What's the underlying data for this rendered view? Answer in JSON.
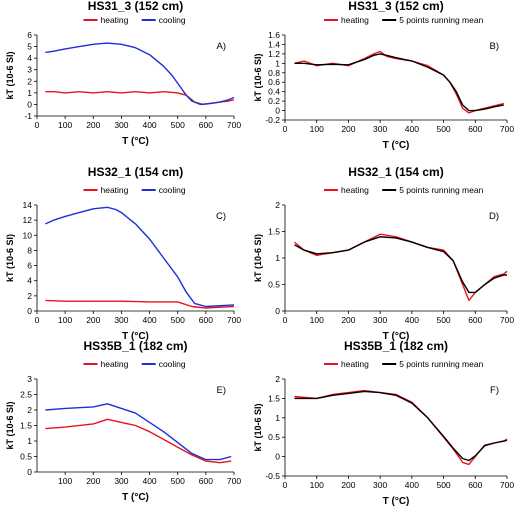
{
  "colors": {
    "heating": "#e8141b",
    "cooling": "#1f2fd6",
    "mean": "#000000"
  },
  "chart_data": [
    {
      "type": "line",
      "title": "HS31_3 (152 cm)",
      "panel_label": "A)",
      "xlabel": "T (°C)",
      "ylabel": "kT (10-6 SI)",
      "xlim": [
        0,
        700
      ],
      "ylim": [
        -1,
        6
      ],
      "xticks": [
        0,
        100,
        200,
        300,
        400,
        500,
        600,
        700
      ],
      "yticks": [
        -1,
        0,
        1,
        2,
        3,
        4,
        5,
        6
      ],
      "legend": {
        "placement": "top",
        "entries": [
          "heating",
          "cooling"
        ]
      },
      "series": [
        {
          "name": "heating",
          "color": "#e8141b",
          "x": [
            30,
            60,
            100,
            150,
            200,
            250,
            300,
            350,
            400,
            450,
            500,
            530,
            560,
            590,
            620,
            650,
            680,
            700
          ],
          "y": [
            1.1,
            1.1,
            1.0,
            1.1,
            1.0,
            1.1,
            1.0,
            1.1,
            1.0,
            1.1,
            1.0,
            0.8,
            0.2,
            0.0,
            0.1,
            0.2,
            0.3,
            0.4
          ]
        },
        {
          "name": "cooling",
          "color": "#1f2fd6",
          "x": [
            30,
            60,
            100,
            150,
            200,
            250,
            300,
            350,
            400,
            450,
            480,
            510,
            530,
            550,
            580,
            620,
            650,
            680,
            700
          ],
          "y": [
            4.5,
            4.6,
            4.8,
            5.0,
            5.2,
            5.3,
            5.2,
            4.9,
            4.3,
            3.3,
            2.5,
            1.5,
            0.8,
            0.3,
            0.0,
            0.1,
            0.2,
            0.4,
            0.6
          ]
        }
      ]
    },
    {
      "type": "line",
      "title": "HS31_3 (152 cm)",
      "panel_label": "B)",
      "xlabel": "T (°C)",
      "ylabel": "kT (10-6 SI)",
      "xlim": [
        0,
        700
      ],
      "ylim": [
        -0.2,
        1.6
      ],
      "xticks": [
        0,
        100,
        200,
        300,
        400,
        500,
        600,
        700
      ],
      "yticks": [
        -0.2,
        0,
        0.2,
        0.4,
        0.6,
        0.8,
        1,
        1.2,
        1.4,
        1.6
      ],
      "legend": {
        "placement": "top",
        "entries": [
          "heating",
          "5 points running mean"
        ]
      },
      "series": [
        {
          "name": "heating",
          "color": "#e8141b",
          "x": [
            30,
            60,
            100,
            150,
            200,
            250,
            280,
            300,
            320,
            350,
            400,
            450,
            500,
            520,
            540,
            560,
            580,
            600,
            630,
            660,
            690
          ],
          "y": [
            1.0,
            1.05,
            0.95,
            1.0,
            0.95,
            1.1,
            1.2,
            1.25,
            1.15,
            1.1,
            1.05,
            0.95,
            0.75,
            0.6,
            0.35,
            0.05,
            -0.05,
            0.0,
            0.05,
            0.1,
            0.15
          ]
        },
        {
          "name": "5 points running mean",
          "color": "#000000",
          "x": [
            30,
            60,
            100,
            150,
            200,
            250,
            280,
            300,
            320,
            350,
            400,
            450,
            500,
            520,
            540,
            560,
            580,
            600,
            630,
            660,
            690
          ],
          "y": [
            1.0,
            1.0,
            0.97,
            0.98,
            0.97,
            1.08,
            1.17,
            1.2,
            1.17,
            1.12,
            1.05,
            0.92,
            0.75,
            0.6,
            0.4,
            0.12,
            0.0,
            0.0,
            0.03,
            0.08,
            0.12
          ]
        }
      ]
    },
    {
      "type": "line",
      "title": "HS32_1 (154 cm)",
      "panel_label": "C)",
      "xlabel": "T (°C)",
      "ylabel": "kT (10-6 SI)",
      "xlim": [
        0,
        700
      ],
      "ylim": [
        0,
        14
      ],
      "xticks": [
        0,
        100,
        200,
        300,
        400,
        500,
        600,
        700
      ],
      "yticks": [
        0,
        2,
        4,
        6,
        8,
        10,
        12,
        14
      ],
      "legend": {
        "placement": "top",
        "entries": [
          "heating",
          "cooling"
        ]
      },
      "series": [
        {
          "name": "heating",
          "color": "#e8141b",
          "x": [
            30,
            100,
            200,
            300,
            400,
            500,
            550,
            600,
            650,
            700
          ],
          "y": [
            1.4,
            1.3,
            1.3,
            1.3,
            1.2,
            1.2,
            0.6,
            0.4,
            0.5,
            0.6
          ]
        },
        {
          "name": "cooling",
          "color": "#1f2fd6",
          "x": [
            30,
            60,
            100,
            150,
            200,
            250,
            280,
            300,
            350,
            400,
            450,
            500,
            530,
            560,
            600,
            650,
            700
          ],
          "y": [
            11.5,
            12.0,
            12.5,
            13.0,
            13.5,
            13.7,
            13.4,
            13.0,
            11.5,
            9.5,
            7.0,
            4.5,
            2.5,
            1.0,
            0.6,
            0.7,
            0.8
          ]
        }
      ]
    },
    {
      "type": "line",
      "title": "HS32_1 (154 cm)",
      "panel_label": "D)",
      "xlabel": "T (°C)",
      "ylabel": "kT (10-6 SI)",
      "xlim": [
        0,
        700
      ],
      "ylim": [
        0,
        2
      ],
      "xticks": [
        0,
        100,
        200,
        300,
        400,
        500,
        600,
        700
      ],
      "yticks": [
        0,
        0.5,
        1,
        1.5,
        2
      ],
      "legend": {
        "placement": "top",
        "entries": [
          "heating",
          "5 points running mean"
        ]
      },
      "series": [
        {
          "name": "heating",
          "color": "#e8141b",
          "x": [
            30,
            60,
            100,
            150,
            200,
            250,
            300,
            350,
            400,
            450,
            500,
            530,
            560,
            580,
            600,
            630,
            660,
            690,
            700
          ],
          "y": [
            1.3,
            1.15,
            1.05,
            1.1,
            1.15,
            1.3,
            1.45,
            1.4,
            1.3,
            1.2,
            1.15,
            0.95,
            0.5,
            0.2,
            0.35,
            0.5,
            0.65,
            0.7,
            0.75
          ]
        },
        {
          "name": "5 points running mean",
          "color": "#000000",
          "x": [
            30,
            60,
            100,
            150,
            200,
            250,
            300,
            350,
            400,
            450,
            500,
            530,
            560,
            580,
            600,
            630,
            660,
            690,
            700
          ],
          "y": [
            1.25,
            1.15,
            1.08,
            1.1,
            1.15,
            1.3,
            1.4,
            1.38,
            1.3,
            1.2,
            1.12,
            0.95,
            0.55,
            0.35,
            0.35,
            0.5,
            0.62,
            0.68,
            0.68
          ]
        }
      ]
    },
    {
      "type": "line",
      "title": "HS35B_1 (182 cm)",
      "panel_label": "E)",
      "xlabel": "T (°C)",
      "ylabel": "kT (10-6 SI)",
      "xlim": [
        0,
        700
      ],
      "ylim": [
        0,
        3
      ],
      "xticks": [
        100,
        200,
        300,
        400,
        500,
        600,
        700
      ],
      "yticks": [
        0,
        0.5,
        1,
        1.5,
        2,
        2.5,
        3
      ],
      "legend": {
        "placement": "top",
        "entries": [
          "heating",
          "cooling"
        ]
      },
      "series": [
        {
          "name": "heating",
          "color": "#e8141b",
          "x": [
            30,
            100,
            200,
            250,
            300,
            350,
            400,
            450,
            500,
            550,
            600,
            650,
            690
          ],
          "y": [
            1.4,
            1.45,
            1.55,
            1.7,
            1.6,
            1.5,
            1.3,
            1.05,
            0.8,
            0.55,
            0.35,
            0.3,
            0.35
          ]
        },
        {
          "name": "cooling",
          "color": "#1f2fd6",
          "x": [
            30,
            100,
            200,
            250,
            300,
            350,
            400,
            450,
            500,
            550,
            600,
            650,
            690
          ],
          "y": [
            2.0,
            2.05,
            2.1,
            2.2,
            2.05,
            1.9,
            1.6,
            1.3,
            0.95,
            0.6,
            0.4,
            0.4,
            0.5
          ]
        }
      ]
    },
    {
      "type": "line",
      "title": "HS35B_1 (182 cm)",
      "panel_label": "F)",
      "xlabel": "T (°C)",
      "ylabel": "kT (10-6 SI)",
      "xlim": [
        0,
        700
      ],
      "ylim": [
        -0.5,
        2
      ],
      "xticks": [
        0,
        100,
        200,
        300,
        400,
        500,
        600,
        700
      ],
      "yticks": [
        -0.5,
        0,
        0.5,
        1,
        1.5,
        2
      ],
      "legend": {
        "placement": "top",
        "entries": [
          "heating",
          "5 points running mean"
        ]
      },
      "series": [
        {
          "name": "heating",
          "color": "#e8141b",
          "x": [
            30,
            100,
            150,
            200,
            250,
            300,
            350,
            400,
            450,
            500,
            530,
            560,
            580,
            600,
            630,
            660,
            690,
            700
          ],
          "y": [
            1.55,
            1.5,
            1.6,
            1.65,
            1.7,
            1.65,
            1.6,
            1.4,
            1.0,
            0.5,
            0.2,
            -0.15,
            -0.2,
            0.0,
            0.3,
            0.35,
            0.4,
            0.45
          ]
        },
        {
          "name": "5 points running mean",
          "color": "#000000",
          "x": [
            30,
            100,
            150,
            200,
            250,
            300,
            350,
            400,
            450,
            500,
            530,
            560,
            580,
            600,
            630,
            660,
            690,
            700
          ],
          "y": [
            1.5,
            1.5,
            1.58,
            1.63,
            1.68,
            1.65,
            1.58,
            1.38,
            1.0,
            0.52,
            0.22,
            -0.05,
            -0.1,
            0.02,
            0.28,
            0.35,
            0.4,
            0.42
          ]
        }
      ]
    }
  ]
}
